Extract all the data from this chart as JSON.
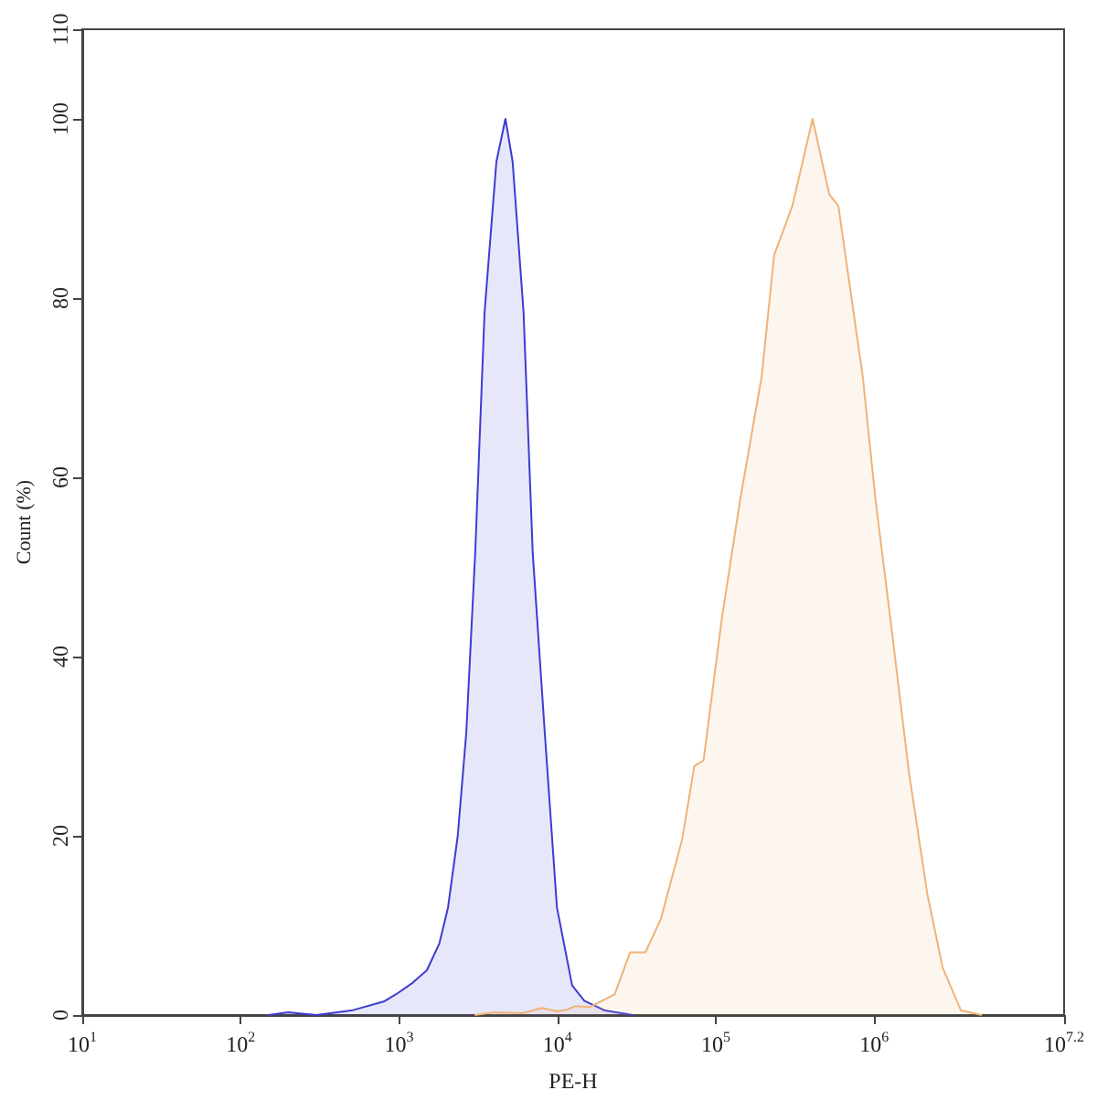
{
  "chart_data": {
    "type": "area",
    "xlabel": "PE-H",
    "ylabel": "Count (%)",
    "log": "x",
    "grid": false,
    "marker": "none",
    "line_style": "solid",
    "xlim": [
      10,
      15848932
    ],
    "xticks": [
      {
        "value": 10,
        "label": "10$^{1}$"
      },
      {
        "value": 100,
        "label": "10$^{2}$"
      },
      {
        "value": 1000,
        "label": "10$^{3}$"
      },
      {
        "value": 10000,
        "label": "10$^{4}$"
      },
      {
        "value": 100000,
        "label": "10$^{5}$"
      },
      {
        "value": 1000000,
        "label": "10$^{6}$"
      },
      {
        "value": 15848932,
        "label": "10$^{7.2}$"
      }
    ],
    "ylim": [
      0,
      110
    ],
    "yticks": [
      0,
      20,
      40,
      60,
      80,
      100,
      110
    ],
    "series": [
      {
        "color": "#3c3cd2",
        "x": [
          150,
          200,
          300,
          500,
          800,
          955,
          1200,
          1500,
          1800,
          2040,
          2350,
          2660,
          3030,
          3470,
          4120,
          4700,
          5220,
          6120,
          6990,
          8330,
          9940,
          12400,
          14800,
          20000,
          30000
        ],
        "values": [
          0,
          0.3,
          0,
          0.5,
          1.5,
          2.3,
          3.5,
          5,
          8,
          12,
          20,
          31.5,
          51.6,
          78.4,
          95.2,
          100,
          95.2,
          78.4,
          51.6,
          31.5,
          12,
          3.3,
          1.6,
          0.5,
          0
        ]
      },
      {
        "color": "#f0b27a",
        "x": [
          3000,
          4000,
          6000,
          8000,
          10000,
          11500,
          13000,
          16100,
          23000,
          28800,
          36000,
          45000,
          61400,
          73300,
          83800,
          109000,
          143000,
          195000,
          234000,
          305000,
          409000,
          521000,
          595000,
          849000,
          1020000,
          1270000,
          1660000,
          2170000,
          2710000,
          3540000,
          4800000
        ],
        "values": [
          0,
          0.3,
          0.2,
          0.8,
          0.4,
          0.6,
          1.0,
          0.9,
          2.3,
          7,
          7,
          10.7,
          19.6,
          27.8,
          28.4,
          44.1,
          57.6,
          71.2,
          84.8,
          90.3,
          100,
          91.6,
          90.3,
          71.2,
          57.6,
          44.1,
          27.1,
          13.5,
          5.3,
          0.5,
          0
        ]
      }
    ]
  }
}
